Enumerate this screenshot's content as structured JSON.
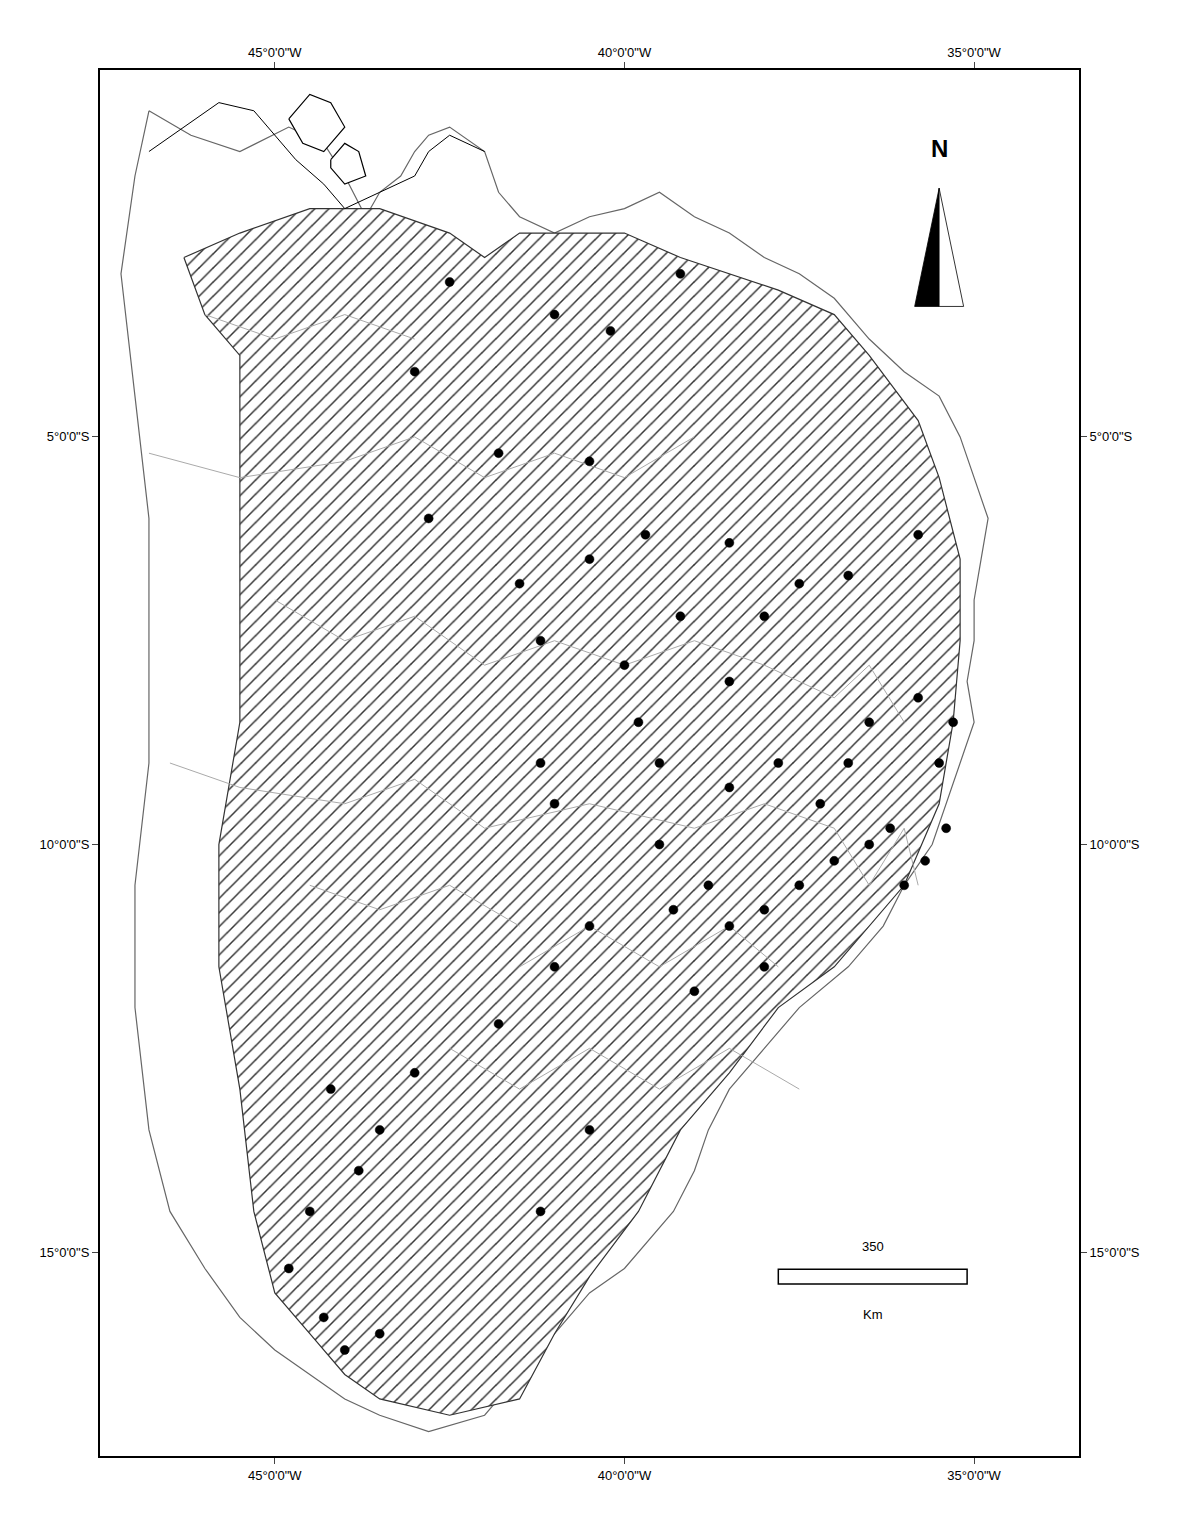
{
  "chart_data": {
    "type": "map",
    "grid": false,
    "tick_labels": true,
    "xlim": [
      -47.5,
      -33.5
    ],
    "ylim": [
      -17.5,
      -0.5
    ],
    "xticks": [
      {
        "value": -45,
        "label": "45°0'0\"W"
      },
      {
        "value": -40,
        "label": "40°0'0\"W"
      },
      {
        "value": -35,
        "label": "35°0'0\"W"
      }
    ],
    "yticks": [
      {
        "value": -5,
        "label": "5°0'0\"S"
      },
      {
        "value": -10,
        "label": "10°0'0\"S"
      },
      {
        "value": -15,
        "label": "15°0'0\"S"
      }
    ],
    "series": [
      {
        "type": "area",
        "color": "#666666",
        "points": [
          [
            -46.8,
            -1.0
          ],
          [
            -46.2,
            -1.3
          ],
          [
            -45.5,
            -1.5
          ],
          [
            -44.8,
            -1.2
          ],
          [
            -44.3,
            -1.4
          ],
          [
            -44.0,
            -1.8
          ],
          [
            -43.7,
            -2.3
          ],
          [
            -43.5,
            -2.0
          ],
          [
            -43.2,
            -1.8
          ],
          [
            -43.0,
            -1.5
          ],
          [
            -42.8,
            -1.3
          ],
          [
            -42.5,
            -1.2
          ],
          [
            -42.0,
            -1.5
          ],
          [
            -41.8,
            -2.0
          ],
          [
            -41.5,
            -2.3
          ],
          [
            -41.0,
            -2.5
          ],
          [
            -40.5,
            -2.3
          ],
          [
            -40.0,
            -2.2
          ],
          [
            -39.5,
            -2.0
          ],
          [
            -39.0,
            -2.3
          ],
          [
            -38.5,
            -2.5
          ],
          [
            -38.0,
            -2.8
          ],
          [
            -37.5,
            -3.0
          ],
          [
            -37.0,
            -3.3
          ],
          [
            -36.5,
            -3.8
          ],
          [
            -36.0,
            -4.2
          ],
          [
            -35.5,
            -4.5
          ],
          [
            -35.2,
            -5.0
          ],
          [
            -35.0,
            -5.5
          ],
          [
            -34.8,
            -6.0
          ],
          [
            -34.9,
            -6.5
          ],
          [
            -35.0,
            -7.0
          ],
          [
            -35.0,
            -7.5
          ],
          [
            -35.1,
            -8.0
          ],
          [
            -35.0,
            -8.5
          ],
          [
            -35.2,
            -9.0
          ],
          [
            -35.4,
            -9.5
          ],
          [
            -35.6,
            -10.0
          ],
          [
            -36.0,
            -10.5
          ],
          [
            -36.3,
            -11.0
          ],
          [
            -36.8,
            -11.5
          ],
          [
            -37.5,
            -12.0
          ],
          [
            -38.0,
            -12.5
          ],
          [
            -38.5,
            -13.0
          ],
          [
            -38.8,
            -13.5
          ],
          [
            -39.0,
            -14.0
          ],
          [
            -39.3,
            -14.5
          ],
          [
            -39.8,
            -15.0
          ],
          [
            -40.0,
            -15.2
          ],
          [
            -40.5,
            -15.5
          ],
          [
            -41.0,
            -16.0
          ],
          [
            -41.5,
            -16.5
          ],
          [
            -42.0,
            -17.0
          ],
          [
            -42.8,
            -17.2
          ],
          [
            -43.5,
            -17.0
          ],
          [
            -44.0,
            -16.8
          ],
          [
            -44.5,
            -16.5
          ],
          [
            -45.0,
            -16.2
          ],
          [
            -45.5,
            -15.8
          ],
          [
            -46.0,
            -15.2
          ],
          [
            -46.5,
            -14.5
          ],
          [
            -46.8,
            -13.5
          ],
          [
            -47.0,
            -12.0
          ],
          [
            -47.0,
            -10.5
          ],
          [
            -46.8,
            -9.0
          ],
          [
            -46.8,
            -7.5
          ],
          [
            -46.8,
            -6.0
          ],
          [
            -47.0,
            -4.5
          ],
          [
            -47.2,
            -3.0
          ],
          [
            -47.0,
            -1.8
          ],
          [
            -46.8,
            -1.0
          ]
        ]
      },
      {
        "type": "hatched_area",
        "color": "#333333",
        "points": [
          [
            -46.3,
            -2.8
          ],
          [
            -45.5,
            -2.5
          ],
          [
            -44.5,
            -2.2
          ],
          [
            -43.5,
            -2.2
          ],
          [
            -42.5,
            -2.5
          ],
          [
            -42.0,
            -2.8
          ],
          [
            -41.5,
            -2.5
          ],
          [
            -41.0,
            -2.5
          ],
          [
            -40.0,
            -2.5
          ],
          [
            -39.2,
            -2.8
          ],
          [
            -38.5,
            -3.0
          ],
          [
            -37.8,
            -3.2
          ],
          [
            -37.0,
            -3.5
          ],
          [
            -36.5,
            -4.0
          ],
          [
            -35.8,
            -4.8
          ],
          [
            -35.5,
            -5.5
          ],
          [
            -35.2,
            -6.5
          ],
          [
            -35.2,
            -7.5
          ],
          [
            -35.3,
            -8.5
          ],
          [
            -35.5,
            -9.5
          ],
          [
            -36.0,
            -10.5
          ],
          [
            -36.5,
            -11.0
          ],
          [
            -37.0,
            -11.5
          ],
          [
            -37.8,
            -12.0
          ],
          [
            -38.5,
            -12.8
          ],
          [
            -39.2,
            -13.5
          ],
          [
            -39.8,
            -14.5
          ],
          [
            -40.5,
            -15.3
          ],
          [
            -41.0,
            -16.0
          ],
          [
            -41.5,
            -16.8
          ],
          [
            -42.5,
            -17.0
          ],
          [
            -43.5,
            -16.8
          ],
          [
            -44.0,
            -16.5
          ],
          [
            -44.5,
            -16.0
          ],
          [
            -45.0,
            -15.5
          ],
          [
            -45.3,
            -14.5
          ],
          [
            -45.5,
            -13.0
          ],
          [
            -45.8,
            -11.5
          ],
          [
            -45.8,
            -10.0
          ],
          [
            -45.5,
            -8.5
          ],
          [
            -45.5,
            -7.0
          ],
          [
            -45.5,
            -5.5
          ],
          [
            -45.5,
            -4.0
          ],
          [
            -46.0,
            -3.5
          ],
          [
            -46.3,
            -2.8
          ]
        ]
      },
      {
        "type": "line",
        "color": "#aaaaaa",
        "points": [
          [
            -46.8,
            -5.2
          ],
          [
            -45.5,
            -5.5
          ],
          [
            -44.0,
            -5.3
          ],
          [
            -43.0,
            -5.0
          ],
          [
            -42.0,
            -5.5
          ],
          [
            -41.0,
            -5.2
          ],
          [
            -40.0,
            -5.5
          ],
          [
            -39.0,
            -5.0
          ]
        ]
      },
      {
        "type": "line",
        "color": "#aaaaaa",
        "points": [
          [
            -46.5,
            -9.0
          ],
          [
            -45.5,
            -9.3
          ],
          [
            -44.0,
            -9.5
          ],
          [
            -43.0,
            -9.2
          ],
          [
            -42.0,
            -9.8
          ],
          [
            -40.5,
            -9.5
          ],
          [
            -39.0,
            -9.8
          ],
          [
            -38.0,
            -9.5
          ],
          [
            -37.0,
            -9.8
          ]
        ]
      },
      {
        "type": "line",
        "color": "#aaaaaa",
        "points": [
          [
            -45.0,
            -7.0
          ],
          [
            -44.0,
            -7.5
          ],
          [
            -43.0,
            -7.2
          ],
          [
            -42.0,
            -7.8
          ],
          [
            -41.0,
            -7.5
          ],
          [
            -40.0,
            -7.8
          ],
          [
            -39.0,
            -7.5
          ],
          [
            -38.0,
            -7.8
          ]
        ]
      },
      {
        "type": "line",
        "color": "#aaaaaa",
        "points": [
          [
            -42.5,
            -12.5
          ],
          [
            -41.5,
            -13.0
          ],
          [
            -40.5,
            -12.5
          ],
          [
            -39.5,
            -13.0
          ],
          [
            -38.5,
            -12.5
          ],
          [
            -37.5,
            -13.0
          ]
        ]
      },
      {
        "type": "line",
        "color": "#aaaaaa",
        "points": [
          [
            -46.0,
            -3.5
          ],
          [
            -45.0,
            -3.8
          ],
          [
            -44.0,
            -3.5
          ],
          [
            -43.0,
            -3.8
          ]
        ]
      },
      {
        "type": "line",
        "color": "#aaaaaa",
        "points": [
          [
            -41.5,
            -11.5
          ],
          [
            -40.5,
            -11.0
          ],
          [
            -39.5,
            -11.5
          ],
          [
            -38.5,
            -11.0
          ],
          [
            -37.8,
            -11.5
          ]
        ]
      },
      {
        "type": "line",
        "color": "#aaaaaa",
        "points": [
          [
            -44.5,
            -10.5
          ],
          [
            -43.5,
            -10.8
          ],
          [
            -42.5,
            -10.5
          ],
          [
            -41.5,
            -11.0
          ]
        ]
      },
      {
        "type": "line",
        "color": "#aaaaaa",
        "points": [
          [
            -38.0,
            -7.8
          ],
          [
            -37.0,
            -8.2
          ],
          [
            -36.5,
            -7.8
          ],
          [
            -36.0,
            -8.5
          ]
        ]
      },
      {
        "type": "line",
        "color": "#aaaaaa",
        "points": [
          [
            -37.0,
            -9.8
          ],
          [
            -36.5,
            -10.5
          ],
          [
            -36.0,
            -9.8
          ],
          [
            -35.8,
            -10.5
          ]
        ]
      },
      {
        "type": "line",
        "color": "#000000",
        "points": [
          [
            -46.8,
            -1.5
          ],
          [
            -46.3,
            -1.2
          ],
          [
            -45.8,
            -0.9
          ],
          [
            -45.3,
            -1.0
          ],
          [
            -45.0,
            -1.3
          ],
          [
            -44.7,
            -1.6
          ],
          [
            -44.3,
            -1.9
          ],
          [
            -44.0,
            -2.2
          ],
          [
            -43.5,
            -2.0
          ],
          [
            -43.0,
            -1.8
          ],
          [
            -42.8,
            -1.5
          ],
          [
            -42.5,
            -1.3
          ],
          [
            -42.0,
            -1.5
          ]
        ]
      },
      {
        "type": "area",
        "color": "#000000",
        "points": [
          [
            -44.8,
            -1.1
          ],
          [
            -44.5,
            -0.8
          ],
          [
            -44.2,
            -0.9
          ],
          [
            -44.0,
            -1.2
          ],
          [
            -44.3,
            -1.5
          ],
          [
            -44.6,
            -1.4
          ],
          [
            -44.8,
            -1.1
          ]
        ]
      },
      {
        "type": "area",
        "color": "#000000",
        "points": [
          [
            -44.2,
            -1.6
          ],
          [
            -44.0,
            -1.4
          ],
          [
            -43.8,
            -1.5
          ],
          [
            -43.7,
            -1.8
          ],
          [
            -44.0,
            -1.9
          ],
          [
            -44.2,
            -1.7
          ],
          [
            -44.2,
            -1.6
          ]
        ]
      },
      {
        "type": "scatter",
        "color": "#000000",
        "marker": "circle",
        "points": [
          [
            -42.5,
            -3.1
          ],
          [
            -41.0,
            -3.5
          ],
          [
            -39.2,
            -3.0
          ],
          [
            -40.2,
            -3.7
          ],
          [
            -43.0,
            -4.2
          ],
          [
            -41.8,
            -5.2
          ],
          [
            -40.5,
            -5.3
          ],
          [
            -42.8,
            -6.0
          ],
          [
            -41.5,
            -6.8
          ],
          [
            -40.5,
            -6.5
          ],
          [
            -39.7,
            -6.2
          ],
          [
            -38.5,
            -6.3
          ],
          [
            -39.2,
            -7.2
          ],
          [
            -41.2,
            -7.5
          ],
          [
            -40.0,
            -7.8
          ],
          [
            -38.0,
            -7.2
          ],
          [
            -37.5,
            -6.8
          ],
          [
            -36.8,
            -6.7
          ],
          [
            -35.8,
            -6.2
          ],
          [
            -38.5,
            -8.0
          ],
          [
            -39.8,
            -8.5
          ],
          [
            -41.2,
            -9.0
          ],
          [
            -41.0,
            -9.5
          ],
          [
            -39.5,
            -9.0
          ],
          [
            -38.5,
            -9.3
          ],
          [
            -37.8,
            -9.0
          ],
          [
            -37.2,
            -9.5
          ],
          [
            -36.8,
            -9.0
          ],
          [
            -36.5,
            -8.5
          ],
          [
            -35.8,
            -8.2
          ],
          [
            -35.5,
            -9.0
          ],
          [
            -35.3,
            -8.5
          ],
          [
            -39.5,
            -10.0
          ],
          [
            -38.8,
            -10.5
          ],
          [
            -39.3,
            -10.8
          ],
          [
            -38.0,
            -10.8
          ],
          [
            -37.5,
            -10.5
          ],
          [
            -37.0,
            -10.2
          ],
          [
            -36.5,
            -10.0
          ],
          [
            -36.2,
            -9.8
          ],
          [
            -36.0,
            -10.5
          ],
          [
            -35.7,
            -10.2
          ],
          [
            -35.4,
            -9.8
          ],
          [
            -38.5,
            -11.0
          ],
          [
            -38.0,
            -11.5
          ],
          [
            -39.0,
            -11.8
          ],
          [
            -40.5,
            -11.0
          ],
          [
            -41.0,
            -11.5
          ],
          [
            -41.8,
            -12.2
          ],
          [
            -43.0,
            -12.8
          ],
          [
            -43.5,
            -13.5
          ],
          [
            -43.8,
            -14.0
          ],
          [
            -44.2,
            -13.0
          ],
          [
            -44.5,
            -14.5
          ],
          [
            -44.8,
            -15.2
          ],
          [
            -44.3,
            -15.8
          ],
          [
            -44.0,
            -16.2
          ],
          [
            -43.5,
            -16.0
          ],
          [
            -40.5,
            -13.5
          ],
          [
            -41.2,
            -14.5
          ]
        ]
      }
    ],
    "scale_bar": {
      "x1": -37.8,
      "x2": -35.1,
      "y": -15.3,
      "label": "350",
      "unit": "Km"
    },
    "north_arrow": {
      "x": -35.5,
      "y": -1.8,
      "label": "N"
    }
  }
}
